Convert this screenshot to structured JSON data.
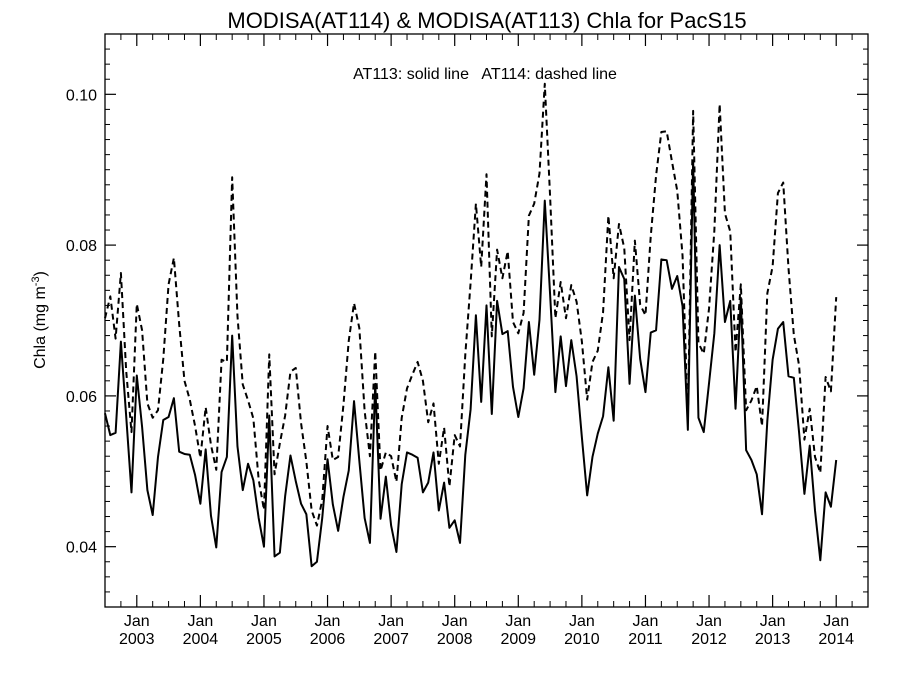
{
  "chart_data": {
    "type": "line",
    "title": "MODISA(AT114) & MODISA(AT113)  Chla for PacS15",
    "annotation": "AT113: solid line   AT114: dashed line",
    "ylabel": "Chla (mg m",
    "ylabel_superscript": "-3",
    "ylabel_suffix": ")",
    "xlabel": "",
    "x_axis": "date",
    "xlim": [
      "2002-07",
      "2014-07"
    ],
    "ylim": [
      0.032,
      0.108
    ],
    "yticks": [
      "0.04",
      "0.06",
      "0.08",
      "0.10"
    ],
    "xticks": [
      {
        "month": "Jan",
        "year": "2003"
      },
      {
        "month": "Jan",
        "year": "2004"
      },
      {
        "month": "Jan",
        "year": "2005"
      },
      {
        "month": "Jan",
        "year": "2006"
      },
      {
        "month": "Jan",
        "year": "2007"
      },
      {
        "month": "Jan",
        "year": "2008"
      },
      {
        "month": "Jan",
        "year": "2009"
      },
      {
        "month": "Jan",
        "year": "2010"
      },
      {
        "month": "Jan",
        "year": "2011"
      },
      {
        "month": "Jan",
        "year": "2012"
      },
      {
        "month": "Jan",
        "year": "2013"
      },
      {
        "month": "Jan",
        "year": "2014"
      }
    ],
    "grid": false,
    "legend": "none",
    "start_month": "2002-07",
    "series": [
      {
        "style": "solid",
        "values": [
          0.0577,
          0.0548,
          0.0551,
          0.0672,
          0.0573,
          0.0472,
          0.0627,
          0.0559,
          0.0475,
          0.0442,
          0.0519,
          0.0568,
          0.0572,
          0.0597,
          0.0526,
          0.0523,
          0.0522,
          0.0495,
          0.0457,
          0.0529,
          0.0441,
          0.0399,
          0.0499,
          0.0519,
          0.068,
          0.0533,
          0.0475,
          0.051,
          0.0488,
          0.0438,
          0.04,
          0.0574,
          0.0387,
          0.0392,
          0.0467,
          0.0521,
          0.0487,
          0.0457,
          0.0443,
          0.0374,
          0.038,
          0.0438,
          0.0516,
          0.0456,
          0.0421,
          0.0466,
          0.0501,
          0.0593,
          0.0514,
          0.0438,
          0.0405,
          0.0616,
          0.0437,
          0.0493,
          0.0428,
          0.0393,
          0.0483,
          0.0525,
          0.0522,
          0.0518,
          0.0472,
          0.0485,
          0.0525,
          0.0448,
          0.0485,
          0.0425,
          0.0435,
          0.0405,
          0.0522,
          0.0582,
          0.0707,
          0.0592,
          0.072,
          0.0576,
          0.0726,
          0.0682,
          0.0686,
          0.0612,
          0.0572,
          0.061,
          0.0698,
          0.0628,
          0.0701,
          0.0859,
          0.0735,
          0.0605,
          0.0679,
          0.0613,
          0.0674,
          0.0626,
          0.0545,
          0.0468,
          0.0519,
          0.055,
          0.0573,
          0.0638,
          0.0567,
          0.0771,
          0.0755,
          0.0616,
          0.0733,
          0.0649,
          0.0605,
          0.0684,
          0.0687,
          0.0781,
          0.078,
          0.0742,
          0.0759,
          0.0719,
          0.0555,
          0.0912,
          0.0571,
          0.0552,
          0.0617,
          0.0683,
          0.08,
          0.0698,
          0.0726,
          0.0583,
          0.073,
          0.0528,
          0.0515,
          0.0496,
          0.0443,
          0.0567,
          0.0648,
          0.0689,
          0.0698,
          0.0626,
          0.0624,
          0.0551,
          0.047,
          0.0534,
          0.0448,
          0.0382,
          0.0472,
          0.0453,
          0.0515
        ]
      },
      {
        "style": "dashed",
        "values": [
          0.0703,
          0.0732,
          0.0676,
          0.0763,
          0.0633,
          0.0552,
          0.0722,
          0.0687,
          0.059,
          0.0571,
          0.0581,
          0.0649,
          0.0748,
          0.0783,
          0.0695,
          0.062,
          0.0595,
          0.056,
          0.0518,
          0.0585,
          0.0535,
          0.0502,
          0.0648,
          0.0645,
          0.089,
          0.0706,
          0.0615,
          0.0594,
          0.057,
          0.0489,
          0.0449,
          0.0655,
          0.0496,
          0.0537,
          0.0574,
          0.0632,
          0.0637,
          0.0564,
          0.0513,
          0.0448,
          0.0428,
          0.0462,
          0.056,
          0.0515,
          0.0519,
          0.0588,
          0.0673,
          0.0723,
          0.069,
          0.058,
          0.052,
          0.0659,
          0.0501,
          0.0525,
          0.052,
          0.0486,
          0.0571,
          0.061,
          0.0628,
          0.0645,
          0.062,
          0.0565,
          0.059,
          0.051,
          0.0558,
          0.048,
          0.0548,
          0.0533,
          0.0655,
          0.075,
          0.0855,
          0.0771,
          0.0894,
          0.0679,
          0.0794,
          0.0756,
          0.0792,
          0.0698,
          0.0683,
          0.071,
          0.0839,
          0.0855,
          0.0895,
          0.1014,
          0.0865,
          0.0703,
          0.0751,
          0.0703,
          0.0747,
          0.0725,
          0.0672,
          0.0595,
          0.0645,
          0.066,
          0.0711,
          0.0839,
          0.0756,
          0.0828,
          0.0796,
          0.0674,
          0.0806,
          0.0721,
          0.0707,
          0.0812,
          0.0892,
          0.095,
          0.0951,
          0.0911,
          0.0872,
          0.0786,
          0.0569,
          0.0978,
          0.067,
          0.0656,
          0.0716,
          0.0819,
          0.0987,
          0.0842,
          0.0818,
          0.0658,
          0.0748,
          0.0581,
          0.0594,
          0.0613,
          0.056,
          0.0736,
          0.0772,
          0.0869,
          0.0883,
          0.0769,
          0.0681,
          0.064,
          0.0542,
          0.0583,
          0.0519,
          0.0498,
          0.0625,
          0.0606,
          0.0731
        ]
      }
    ]
  }
}
